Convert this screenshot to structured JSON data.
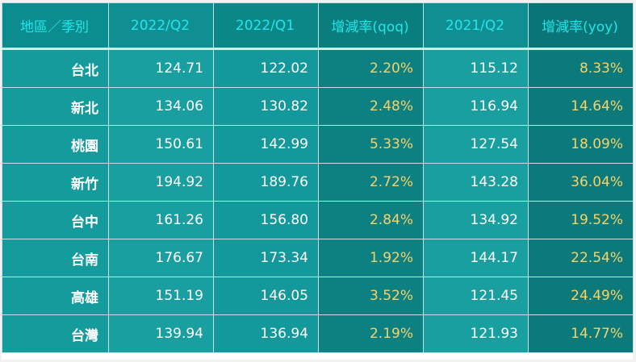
{
  "chart_data": {
    "type": "table",
    "columns": [
      "地區／季別",
      "2022/Q2",
      "2022/Q1",
      "增減率(qoq)",
      "2021/Q2",
      "增減率(yoy)"
    ],
    "rows": [
      [
        "台北",
        "124.71",
        "122.02",
        "2.20%",
        "115.12",
        "8.33%"
      ],
      [
        "新北",
        "134.06",
        "130.82",
        "2.48%",
        "116.94",
        "14.64%"
      ],
      [
        "桃園",
        "150.61",
        "142.99",
        "5.33%",
        "127.54",
        "18.09%"
      ],
      [
        "新竹",
        "194.92",
        "189.76",
        "2.72%",
        "143.28",
        "36.04%"
      ],
      [
        "台中",
        "161.26",
        "156.80",
        "2.84%",
        "134.92",
        "19.52%"
      ],
      [
        "台南",
        "176.67",
        "173.34",
        "1.92%",
        "144.17",
        "22.54%"
      ],
      [
        "高雄",
        "151.19",
        "146.05",
        "3.52%",
        "121.45",
        "24.49%"
      ],
      [
        "台灣",
        "139.94",
        "136.94",
        "2.19%",
        "121.93",
        "14.77%"
      ]
    ]
  },
  "colors": {
    "header_text": "#22e6ea",
    "rate_text": "#f5d36a",
    "value_text": "#ffffff",
    "cell_bg": "#199fa0",
    "rate_col_bg": "#0d8081"
  }
}
